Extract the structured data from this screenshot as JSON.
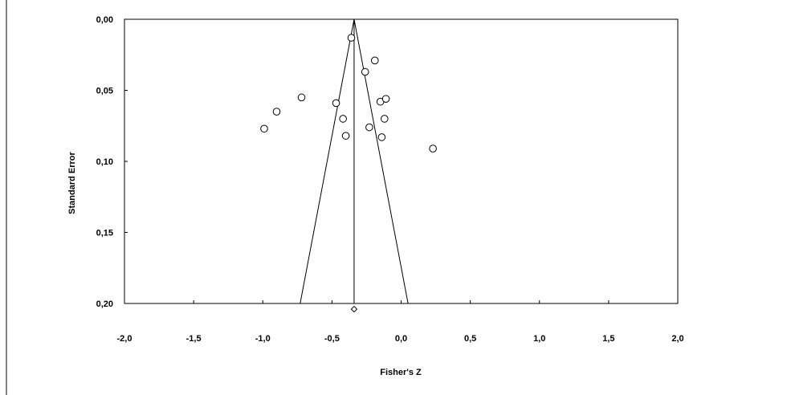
{
  "chart_data": {
    "type": "scatter",
    "title": "",
    "xlabel": "Fisher's Z",
    "ylabel": "Standard Error",
    "xlim": [
      -2.0,
      2.0
    ],
    "ylim": [
      0.0,
      0.2
    ],
    "y_inverted": true,
    "x_ticks": [
      -2.0,
      -1.5,
      -1.0,
      -0.5,
      0.0,
      0.5,
      1.0,
      1.5,
      2.0
    ],
    "x_tick_labels": [
      "-2,0",
      "-1,5",
      "-1,0",
      "-0,5",
      "0,0",
      "0,5",
      "1,0",
      "1,5",
      "2,0"
    ],
    "y_ticks": [
      0.0,
      0.05,
      0.1,
      0.15,
      0.2
    ],
    "y_tick_labels": [
      "0,00",
      "0,05",
      "0,10",
      "0,15",
      "0,20"
    ],
    "grid": false,
    "legend": "none",
    "pooled_estimate": -0.34,
    "funnel_bounds_at_max_se": [
      -0.73,
      0.05
    ],
    "summary_diamond": {
      "x": -0.34,
      "y": 0.204
    },
    "points": [
      {
        "x": -0.36,
        "y": 0.013
      },
      {
        "x": -0.19,
        "y": 0.029
      },
      {
        "x": -0.26,
        "y": 0.037
      },
      {
        "x": -0.72,
        "y": 0.055
      },
      {
        "x": -0.47,
        "y": 0.059
      },
      {
        "x": -0.15,
        "y": 0.058
      },
      {
        "x": -0.11,
        "y": 0.056
      },
      {
        "x": -0.9,
        "y": 0.065
      },
      {
        "x": -0.42,
        "y": 0.07
      },
      {
        "x": -0.12,
        "y": 0.07
      },
      {
        "x": -0.23,
        "y": 0.076
      },
      {
        "x": -0.99,
        "y": 0.077
      },
      {
        "x": -0.4,
        "y": 0.082
      },
      {
        "x": -0.14,
        "y": 0.083
      },
      {
        "x": 0.23,
        "y": 0.091
      }
    ]
  }
}
